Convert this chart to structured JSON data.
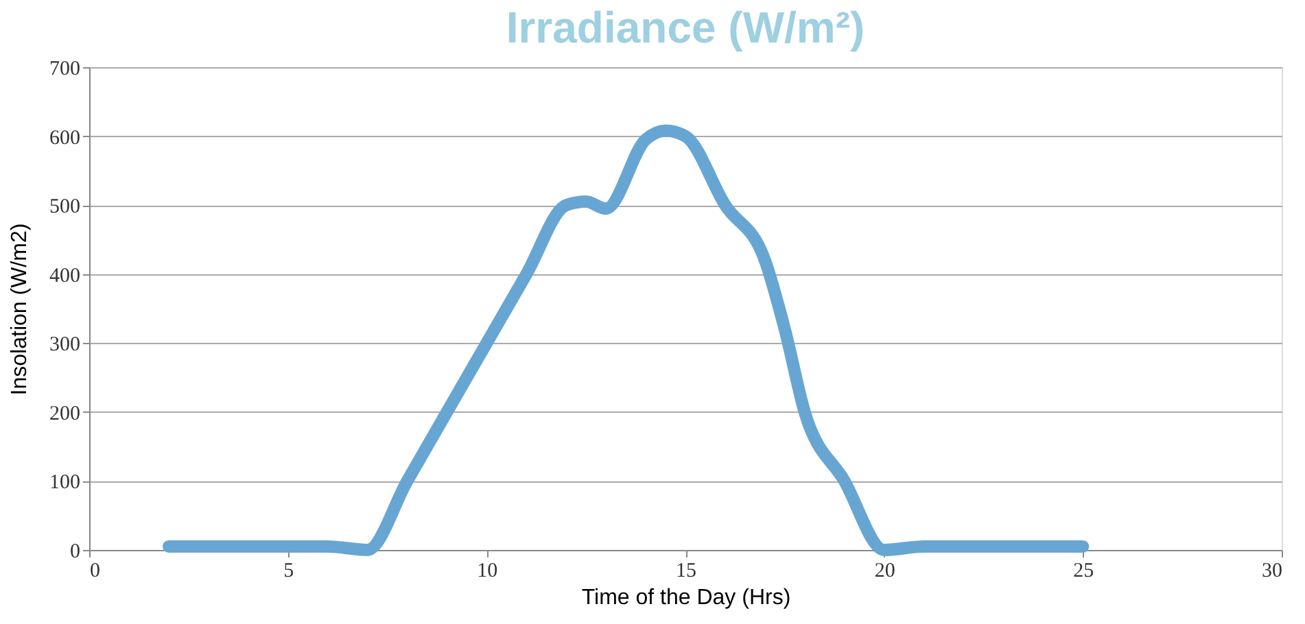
{
  "chart_data": {
    "type": "line",
    "title": "Irradiance (W/m²)",
    "xlabel": "Time of the Day (Hrs)",
    "ylabel": "Insolation (W/m2)",
    "x": [
      2,
      4,
      6,
      7,
      8,
      9,
      10,
      11,
      12,
      12.5,
      13,
      14,
      14.5,
      15,
      16,
      17,
      17.5,
      18,
      19,
      20,
      21,
      23,
      25
    ],
    "series": [
      {
        "color": "#67a6d2",
        "values": [
          5,
          5,
          5,
          0,
          100,
          200,
          300,
          400,
          500,
          505,
          495,
          595,
          608,
          600,
          500,
          420,
          320,
          200,
          100,
          0,
          5,
          5,
          5
        ]
      }
    ],
    "xlim": [
      0,
      30
    ],
    "xticks": [
      0,
      5,
      10,
      15,
      20,
      25,
      30
    ],
    "ylim": [
      0,
      700
    ],
    "yticks": [
      0,
      100,
      200,
      300,
      400,
      500,
      600,
      700
    ],
    "grid": "y",
    "line_style": "solid"
  }
}
